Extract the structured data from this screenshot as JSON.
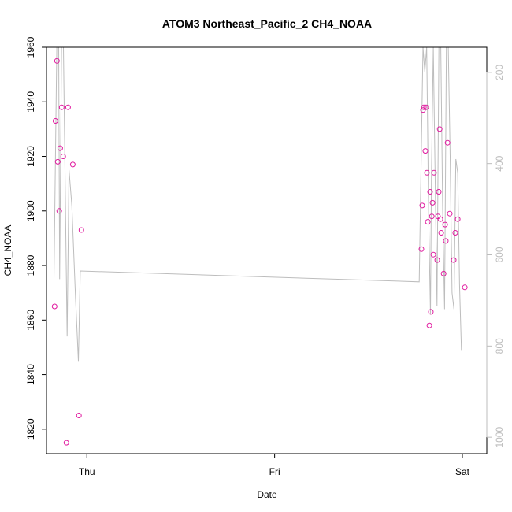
{
  "chart_data": {
    "type": "scatter",
    "title": "ATOM3 Northeast_Pacific_2 CH4_NOAA",
    "xlabel": "Date",
    "ylabel": "CH4_NOAA",
    "x_ticks": [
      {
        "label": "Thu",
        "value": 0.0
      },
      {
        "label": "Fri",
        "value": 1.0
      },
      {
        "label": "Sat",
        "value": 2.0
      }
    ],
    "xlim": [
      -0.215,
      2.13
    ],
    "ylim": [
      1811,
      1960
    ],
    "y_ticks": [
      1820,
      1840,
      1860,
      1880,
      1900,
      1920,
      1940,
      1960
    ],
    "y2lim": [
      1036,
      145
    ],
    "y2_ticks": [
      200,
      400,
      600,
      800,
      1000
    ],
    "grid": false,
    "legend": "none",
    "colors": {
      "points": "#e0189e",
      "altitude_line": "#bdbdbd",
      "axes": "#000000",
      "right_axis": "#bdbdbd"
    },
    "series": [
      {
        "points": [
          {
            "x": -0.172,
            "y": 1865
          },
          {
            "x": -0.167,
            "y": 1933
          },
          {
            "x": -0.159,
            "y": 1955
          },
          {
            "x": -0.155,
            "y": 1918
          },
          {
            "x": -0.147,
            "y": 1900
          },
          {
            "x": -0.142,
            "y": 1923
          },
          {
            "x": -0.134,
            "y": 1938
          },
          {
            "x": -0.126,
            "y": 1920
          },
          {
            "x": -0.109,
            "y": 1815
          },
          {
            "x": -0.1,
            "y": 1938
          },
          {
            "x": -0.075,
            "y": 1917
          },
          {
            "x": -0.042,
            "y": 1825
          },
          {
            "x": -0.029,
            "y": 1893
          },
          {
            "x": 1.782,
            "y": 1886
          },
          {
            "x": 1.786,
            "y": 1902
          },
          {
            "x": 1.79,
            "y": 1937
          },
          {
            "x": 1.795,
            "y": 1938
          },
          {
            "x": 1.803,
            "y": 1922
          },
          {
            "x": 1.807,
            "y": 1938
          },
          {
            "x": 1.811,
            "y": 1914
          },
          {
            "x": 1.816,
            "y": 1896
          },
          {
            "x": 1.824,
            "y": 1858
          },
          {
            "x": 1.828,
            "y": 1907
          },
          {
            "x": 1.832,
            "y": 1863
          },
          {
            "x": 1.837,
            "y": 1898
          },
          {
            "x": 1.841,
            "y": 1903
          },
          {
            "x": 1.845,
            "y": 1884
          },
          {
            "x": 1.849,
            "y": 1914
          },
          {
            "x": 1.866,
            "y": 1882
          },
          {
            "x": 1.87,
            "y": 1898
          },
          {
            "x": 1.874,
            "y": 1907
          },
          {
            "x": 1.879,
            "y": 1930
          },
          {
            "x": 1.883,
            "y": 1897
          },
          {
            "x": 1.887,
            "y": 1892
          },
          {
            "x": 1.9,
            "y": 1877
          },
          {
            "x": 1.908,
            "y": 1895
          },
          {
            "x": 1.912,
            "y": 1889
          },
          {
            "x": 1.921,
            "y": 1925
          },
          {
            "x": 1.933,
            "y": 1899
          },
          {
            "x": 1.954,
            "y": 1882
          },
          {
            "x": 1.962,
            "y": 1892
          },
          {
            "x": 1.975,
            "y": 1897
          },
          {
            "x": 2.013,
            "y": 1872
          }
        ]
      }
    ],
    "altitude_line": [
      {
        "x": -0.175,
        "y": 1875
      },
      {
        "x": -0.16,
        "y": 1960
      },
      {
        "x": -0.15,
        "y": 1960
      },
      {
        "x": -0.145,
        "y": 1875
      },
      {
        "x": -0.135,
        "y": 1960
      },
      {
        "x": -0.125,
        "y": 1960
      },
      {
        "x": -0.105,
        "y": 1854
      },
      {
        "x": -0.095,
        "y": 1915
      },
      {
        "x": -0.08,
        "y": 1902
      },
      {
        "x": -0.06,
        "y": 1868
      },
      {
        "x": -0.045,
        "y": 1845
      },
      {
        "x": -0.035,
        "y": 1878
      },
      {
        "x": 1.77,
        "y": 1874
      },
      {
        "x": 1.79,
        "y": 1960
      },
      {
        "x": 1.8,
        "y": 1951
      },
      {
        "x": 1.81,
        "y": 1960
      },
      {
        "x": 1.82,
        "y": 1900
      },
      {
        "x": 1.83,
        "y": 1862
      },
      {
        "x": 1.835,
        "y": 1912
      },
      {
        "x": 1.845,
        "y": 1960
      },
      {
        "x": 1.855,
        "y": 1913
      },
      {
        "x": 1.865,
        "y": 1865
      },
      {
        "x": 1.875,
        "y": 1960
      },
      {
        "x": 1.885,
        "y": 1960
      },
      {
        "x": 1.895,
        "y": 1900
      },
      {
        "x": 1.905,
        "y": 1864
      },
      {
        "x": 1.915,
        "y": 1960
      },
      {
        "x": 1.925,
        "y": 1960
      },
      {
        "x": 1.935,
        "y": 1920
      },
      {
        "x": 1.945,
        "y": 1870
      },
      {
        "x": 1.955,
        "y": 1864
      },
      {
        "x": 1.965,
        "y": 1919
      },
      {
        "x": 1.975,
        "y": 1914
      },
      {
        "x": 1.985,
        "y": 1873
      },
      {
        "x": 1.995,
        "y": 1849
      }
    ]
  }
}
